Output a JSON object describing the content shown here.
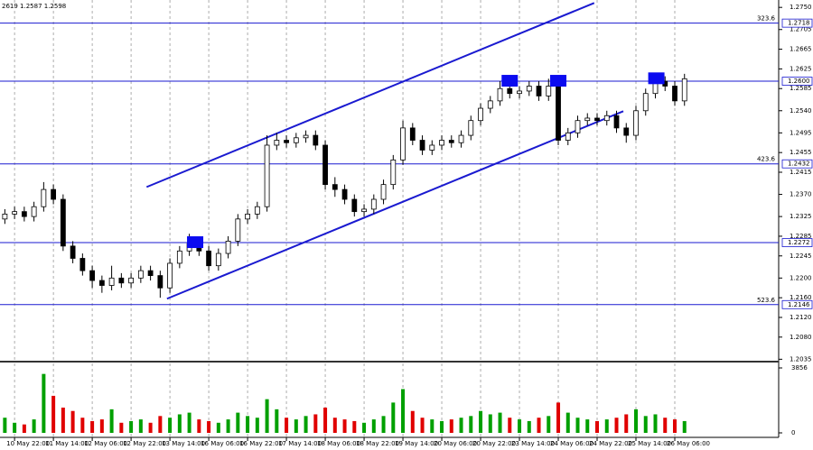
{
  "chart_data": {
    "type": "candlestick",
    "title": "2619 1.2587 1.2598",
    "open": [
      1.232,
      1.233,
      1.2335,
      1.2325,
      1.2345,
      1.238,
      1.236,
      1.2265,
      1.224,
      1.2215,
      1.2195,
      1.2185,
      1.22,
      1.219,
      1.22,
      1.2215,
      1.2205,
      1.218,
      1.223,
      1.2255,
      1.227,
      1.2255,
      1.2225,
      1.225,
      1.2275,
      1.232,
      1.233,
      1.2345,
      1.247,
      1.248,
      1.2475,
      1.2485,
      1.249,
      1.247,
      1.239,
      1.238,
      1.236,
      1.2335,
      1.234,
      1.236,
      1.239,
      1.244,
      1.2505,
      1.248,
      1.246,
      1.247,
      1.248,
      1.2475,
      1.249,
      1.252,
      1.2545,
      1.256,
      1.2585,
      1.2575,
      1.258,
      1.259,
      1.257,
      1.259,
      1.248,
      1.2495,
      1.252,
      1.2525,
      1.252,
      1.253,
      1.2505,
      1.249,
      1.254,
      1.2575,
      1.26,
      1.259,
      1.256
    ],
    "high": [
      1.234,
      1.2345,
      1.2345,
      1.2355,
      1.2395,
      1.239,
      1.237,
      1.2275,
      1.225,
      1.2225,
      1.2205,
      1.2225,
      1.221,
      1.221,
      1.2225,
      1.2225,
      1.2215,
      1.224,
      1.2265,
      1.229,
      1.228,
      1.2265,
      1.226,
      1.2285,
      1.233,
      1.234,
      1.2355,
      1.249,
      1.2495,
      1.249,
      1.2495,
      1.25,
      1.25,
      1.248,
      1.2405,
      1.239,
      1.237,
      1.235,
      1.237,
      1.24,
      1.245,
      1.252,
      1.2515,
      1.249,
      1.248,
      1.249,
      1.249,
      1.25,
      1.253,
      1.2555,
      1.257,
      1.26,
      1.2595,
      1.259,
      1.26,
      1.26,
      1.2605,
      1.26,
      1.2505,
      1.253,
      1.2535,
      1.2535,
      1.254,
      1.254,
      1.2515,
      1.255,
      1.2585,
      1.2615,
      1.261,
      1.26,
      1.2615
    ],
    "low": [
      1.231,
      1.232,
      1.2315,
      1.2315,
      1.2335,
      1.235,
      1.2255,
      1.223,
      1.2205,
      1.218,
      1.217,
      1.2175,
      1.218,
      1.218,
      1.219,
      1.2195,
      1.216,
      1.217,
      1.222,
      1.2245,
      1.2245,
      1.2215,
      1.2215,
      1.224,
      1.2265,
      1.231,
      1.232,
      1.2335,
      1.246,
      1.2465,
      1.2465,
      1.2475,
      1.246,
      1.238,
      1.2365,
      1.235,
      1.2325,
      1.2325,
      1.233,
      1.235,
      1.238,
      1.243,
      1.247,
      1.245,
      1.245,
      1.246,
      1.2465,
      1.2465,
      1.248,
      1.251,
      1.2535,
      1.255,
      1.2565,
      1.2565,
      1.257,
      1.256,
      1.256,
      1.247,
      1.247,
      1.2485,
      1.251,
      1.251,
      1.251,
      1.2495,
      1.2475,
      1.248,
      1.253,
      1.2565,
      1.258,
      1.255,
      1.255
    ],
    "close": [
      1.233,
      1.2335,
      1.2325,
      1.2345,
      1.238,
      1.236,
      1.2265,
      1.224,
      1.2215,
      1.2195,
      1.2185,
      1.22,
      1.219,
      1.22,
      1.2215,
      1.2205,
      1.218,
      1.223,
      1.2255,
      1.227,
      1.2255,
      1.2225,
      1.225,
      1.2275,
      1.232,
      1.233,
      1.2345,
      1.247,
      1.248,
      1.2475,
      1.2485,
      1.249,
      1.247,
      1.239,
      1.238,
      1.236,
      1.2335,
      1.234,
      1.236,
      1.239,
      1.244,
      1.2505,
      1.248,
      1.246,
      1.247,
      1.248,
      1.2475,
      1.249,
      1.252,
      1.2545,
      1.256,
      1.2585,
      1.2575,
      1.258,
      1.259,
      1.257,
      1.259,
      1.248,
      1.2495,
      1.252,
      1.2525,
      1.252,
      1.253,
      1.2505,
      1.249,
      1.254,
      1.2575,
      1.26,
      1.259,
      1.256,
      1.2605
    ],
    "candle_color": "#000000",
    "xlim": [
      0,
      80.2
    ],
    "xticks": [
      {
        "value": 1.5,
        "label": "10 May 22:00"
      },
      {
        "value": 5.5,
        "label": "11 May 14:00"
      },
      {
        "value": 9.5,
        "label": "12 May 06:00"
      },
      {
        "value": 13.5,
        "label": "12 May 22:00"
      },
      {
        "value": 17.5,
        "label": "13 May 14:00"
      },
      {
        "value": 21.5,
        "label": "16 May 06:00"
      },
      {
        "value": 25.5,
        "label": "16 May 22:00"
      },
      {
        "value": 29.5,
        "label": "17 May 14:00"
      },
      {
        "value": 33.5,
        "label": "18 May 06:00"
      },
      {
        "value": 37.5,
        "label": "18 May 22:00"
      },
      {
        "value": 41.5,
        "label": "19 May 14:00"
      },
      {
        "value": 45.5,
        "label": "20 May 06:00"
      },
      {
        "value": 49.5,
        "label": "20 May 22:00"
      },
      {
        "value": 53.5,
        "label": "23 May 14:00"
      },
      {
        "value": 57.5,
        "label": "24 May 06:00"
      },
      {
        "value": 61.5,
        "label": "24 May 22:00"
      },
      {
        "value": 65.5,
        "label": "25 May 14:00"
      },
      {
        "value": 69.5,
        "label": "26 May 06:00"
      }
    ],
    "ylim": [
      1.2032,
      1.2765
    ],
    "yticks": [
      {
        "value": 1.275,
        "label": "1.2750"
      },
      1.2705,
      1.2665,
      1.2625,
      1.2585,
      {
        "value": 1.254,
        "label": "1.2540"
      },
      1.2495,
      1.2455,
      1.2415,
      {
        "value": 1.237,
        "label": "1.2370"
      },
      1.2325,
      1.2285,
      1.2245,
      {
        "value": 1.22,
        "label": "1.2200"
      },
      {
        "value": 1.216,
        "label": "1.2160"
      },
      {
        "value": 1.212,
        "label": "1.2120"
      },
      {
        "value": 1.208,
        "label": "1.2080"
      },
      1.2035
    ],
    "grid": true,
    "levels": [
      {
        "price": 1.2718,
        "fib": "323.6"
      },
      {
        "price": {
          "value": 1.26,
          "label": "1.2600"
        }
      },
      {
        "price": 1.2432,
        "fib": "423.6"
      },
      {
        "price": 1.2272
      },
      {
        "price": 1.2146,
        "fib": "523.6"
      }
    ],
    "level_color": "#1a1ad0",
    "trendlines": [
      {
        "x": [
          15.1,
          61.2
        ],
        "y": [
          1.2385,
          1.2759
        ]
      },
      {
        "x": [
          17.2,
          64.2
        ],
        "y": [
          1.2158,
          1.2539
        ]
      }
    ],
    "trendline_color": "#1a1ad0",
    "markers": [
      {
        "x": 20.1,
        "y": 1.2272
      },
      {
        "x": 52.5,
        "y": 1.26
      },
      {
        "x": 57.5,
        "y": 1.26
      },
      {
        "x": 67.6,
        "y": 1.2605
      }
    ],
    "marker_color": "#0b0bf0",
    "volume": {
      "values": [
        900,
        600,
        500,
        800,
        3500,
        2200,
        1500,
        1300,
        900,
        700,
        800,
        1400,
        600,
        700,
        800,
        600,
        1000,
        900,
        1100,
        1200,
        800,
        700,
        600,
        800,
        1200,
        1000,
        900,
        2000,
        1400,
        900,
        800,
        1000,
        1100,
        1500,
        900,
        800,
        700,
        600,
        800,
        1000,
        1800,
        2600,
        1300,
        900,
        800,
        700,
        800,
        900,
        1000,
        1300,
        1100,
        1200,
        900,
        800,
        700,
        900,
        1000,
        1800,
        1200,
        900,
        800,
        700,
        800,
        900,
        1100,
        1400,
        1000,
        1100,
        900,
        800,
        700
      ],
      "ylim": [
        0,
        3856
      ],
      "yticks": [
        3856,
        0
      ],
      "up_color": "#00a000",
      "down_color": "#e00000"
    }
  }
}
